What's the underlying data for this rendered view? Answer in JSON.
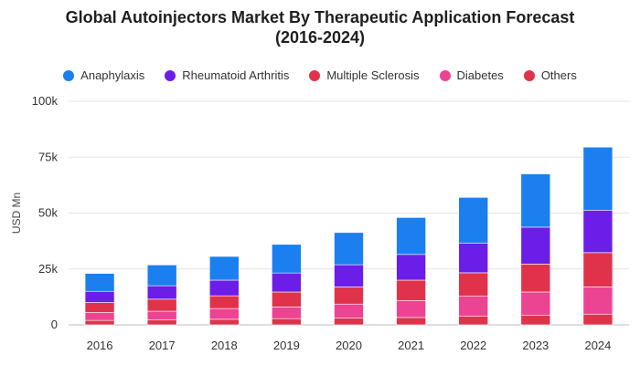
{
  "chart_data": {
    "type": "bar",
    "stacked": true,
    "title": "Global Autoinjectors Market By Therapeutic Application Forecast\n(2016-2024)",
    "xlabel": "",
    "ylabel": "USD Mn",
    "ylim": [
      0,
      100000
    ],
    "yticks": [
      0,
      25000,
      50000,
      75000,
      100000
    ],
    "ytick_labels": [
      "0",
      "25k",
      "50k",
      "75k",
      "100k"
    ],
    "categories": [
      "2016",
      "2017",
      "2018",
      "2019",
      "2020",
      "2021",
      "2022",
      "2023",
      "2024"
    ],
    "grid": true,
    "legend_position": "top",
    "series": [
      {
        "name": "Others",
        "color": "#e0334b",
        "values": [
          2000,
          2300,
          2500,
          2800,
          3000,
          3300,
          3800,
          4200,
          4800
        ]
      },
      {
        "name": "Diabetes",
        "color": "#ec4393",
        "values": [
          3500,
          3800,
          4800,
          5200,
          6300,
          7500,
          9000,
          10500,
          12200
        ]
      },
      {
        "name": "Multiple Sclerosis",
        "color": "#e0334b",
        "values": [
          4500,
          5400,
          5700,
          6700,
          7700,
          9200,
          10500,
          12500,
          15300
        ]
      },
      {
        "name": "Rheumatoid Arthritis",
        "color": "#6b1ee8",
        "values": [
          5000,
          6000,
          7000,
          8500,
          9900,
          11500,
          13300,
          16500,
          19000
        ]
      },
      {
        "name": "Anaphylaxis",
        "color": "#1b7ff0",
        "values": [
          8000,
          9300,
          10600,
          12800,
          14400,
          16500,
          20400,
          23800,
          28200
        ]
      }
    ],
    "legend": [
      {
        "name": "Anaphylaxis",
        "color": "#1b7ff0"
      },
      {
        "name": "Rheumatoid Arthritis",
        "color": "#6b1ee8"
      },
      {
        "name": "Multiple Sclerosis",
        "color": "#e0334b"
      },
      {
        "name": "Diabetes",
        "color": "#ec4393"
      },
      {
        "name": "Others",
        "color": "#e0334b"
      }
    ]
  }
}
